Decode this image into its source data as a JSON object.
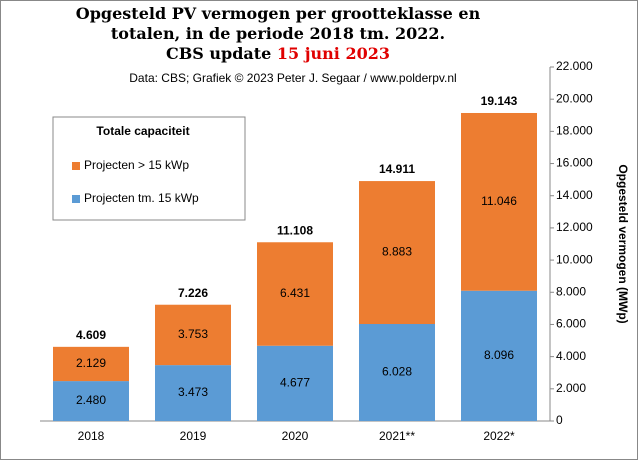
{
  "chart_data": {
    "type": "stacked_bar",
    "title": [
      "Opgesteld PV vermogen per grootteklasse  en",
      "totalen, in de periode 2018 tm. 2022.",
      "CBS update"
    ],
    "title_highlight": "15 juni 2023",
    "subtitle": "Data: CBS; Grafiek © 2023 Peter J. Segaar / www.polderpv.nl",
    "y_label": "Opgesteld vermogen (MWp)",
    "legend_title": "Totale capaciteit",
    "legend": "upper left",
    "categories": [
      "2018",
      "2019",
      "2020",
      "2021**",
      "2022*"
    ],
    "series": [
      {
        "name": "Projecten tm. 15 kWp",
        "color": "#5b9bd5",
        "values": [
          2480,
          3473,
          4677,
          6028,
          8096
        ],
        "value_labels": [
          "2.480",
          "3.473",
          "4.677",
          "6.028",
          "8.096"
        ]
      },
      {
        "name": "Projecten > 15 kWp",
        "color": "#ed7d31",
        "values": [
          2129,
          3753,
          6431,
          8883,
          11046
        ],
        "value_labels": [
          "2.129",
          "3.753",
          "6.431",
          "8.883",
          "11.046"
        ]
      }
    ],
    "totals": {
      "values": [
        4609,
        7226,
        11108,
        14911,
        19143
      ],
      "value_labels": [
        "4.609",
        "7.226",
        "11.108",
        "14.911",
        "19.143"
      ]
    },
    "ylim": [
      0,
      22000
    ],
    "yticks": [
      0,
      {
        "value": 2000,
        "label": "2.000"
      },
      {
        "value": 4000,
        "label": "4.000"
      },
      {
        "value": 6000,
        "label": "6.000"
      },
      {
        "value": 8000,
        "label": "8.000"
      },
      {
        "value": 10000,
        "label": "10.000"
      },
      {
        "value": 12000,
        "label": "12.000"
      },
      {
        "value": 14000,
        "label": "14.000"
      },
      {
        "value": 16000,
        "label": "16.000"
      },
      {
        "value": 18000,
        "label": "18.000"
      },
      {
        "value": 20000,
        "label": "20.000"
      },
      {
        "value": 22000,
        "label": "22.000"
      }
    ],
    "grid": false
  }
}
